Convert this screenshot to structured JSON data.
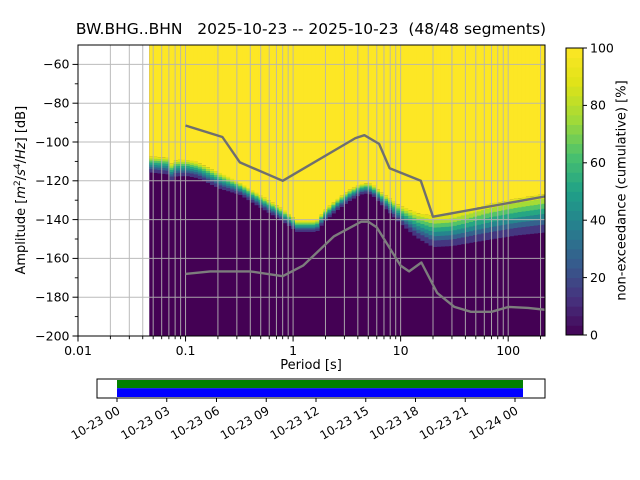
{
  "title": "BW.BHG..BHN   2025-10-23 -- 2025-10-23  (48/48 segments)",
  "station_id": "BW.BHG..BHN",
  "date_range": "2025-10-23 -- 2025-10-23",
  "segments": "48/48 segments",
  "axes": {
    "xlabel": "Period [s]",
    "ylabel_parts": {
      "pre": "Amplitude [",
      "m": "m",
      "m_exp": "2",
      "slash1": "/",
      "s": "s",
      "s_exp": "4",
      "slash2": "/",
      "hz": "Hz",
      "post": "] [dB]"
    }
  },
  "colorbar": {
    "label": "non-exceedance (cumulative) [%]",
    "tick_values": [
      0,
      20,
      40,
      60,
      80,
      100
    ],
    "tick_labels": [
      "0",
      "20",
      "40",
      "60",
      "80",
      "100"
    ],
    "steps": 30
  },
  "timeline": {
    "labels": [
      "10-23 00",
      "10-23 03",
      "10-23 06",
      "10-23 09",
      "10-23 12",
      "10-23 15",
      "10-23 18",
      "10-23 21",
      "10-24 00"
    ],
    "coverage_color_top": "#008000",
    "coverage_color_bottom": "#0000ff"
  },
  "chart_data": {
    "type": "heatmap",
    "title": "BW.BHG..BHN   2025-10-23 -- 2025-10-23  (48/48 segments)",
    "xlabel": "Period [s]",
    "ylabel": "Amplitude [m^2/s^4/Hz] [dB]",
    "xscale": "log",
    "xlim": [
      0.01,
      220
    ],
    "ylim": [
      -200,
      -50
    ],
    "xtick_values": [
      0.01,
      0.1,
      1,
      10,
      100
    ],
    "xtick_labels": [
      "0.01",
      "0.1",
      "1",
      "10",
      "100"
    ],
    "ytick_values": [
      -60,
      -80,
      -100,
      -120,
      -140,
      -160,
      -180,
      -200
    ],
    "ytick_labels": [
      "−60",
      "−80",
      "−100",
      "−120",
      "−140",
      "−160",
      "−180",
      "−200"
    ],
    "ytick_minor_values": [
      -70,
      -90,
      -110,
      -130,
      -150,
      -170,
      -190
    ],
    "grid": true,
    "grid_color": "#b4b4b4",
    "colormap": "viridis",
    "colormap_stops": [
      "#440154",
      "#46327e",
      "#365c8d",
      "#277f8e",
      "#1fa187",
      "#4ac16d",
      "#a0da39",
      "#dfe318",
      "#fde725"
    ],
    "colorbar_label": "non-exceedance (cumulative) [%]",
    "colorbar_range": [
      0,
      100
    ],
    "distribution": {
      "note": "cumulative PPSD: yellow above upper boundary (100%), purple below lower boundary (0%)",
      "period_start_s": 0.046,
      "period_bin_octaves": 0.125,
      "upper_boundary_db": [
        [
          0.046,
          -107.5
        ],
        [
          0.068,
          -108.0
        ],
        [
          0.071,
          -111.2
        ],
        [
          0.078,
          -111.2
        ],
        [
          0.081,
          -109.2
        ],
        [
          0.105,
          -109.3
        ],
        [
          0.13,
          -110.5
        ],
        [
          0.155,
          -112.5
        ],
        [
          0.21,
          -116.0
        ],
        [
          0.32,
          -121.0
        ],
        [
          0.49,
          -127.3
        ],
        [
          0.75,
          -133.5
        ],
        [
          0.99,
          -138.6
        ],
        [
          1.08,
          -140.7
        ],
        [
          1.65,
          -140.7
        ],
        [
          1.95,
          -135.2
        ],
        [
          2.5,
          -130.0
        ],
        [
          3.3,
          -124.8
        ],
        [
          4.2,
          -121.8
        ],
        [
          5.0,
          -121.0
        ],
        [
          5.6,
          -122.5
        ],
        [
          7.0,
          -127.0
        ],
        [
          10.0,
          -133.0
        ],
        [
          14.0,
          -136.5
        ],
        [
          20.0,
          -138.2
        ],
        [
          30.0,
          -137.5
        ],
        [
          45.0,
          -134.8
        ],
        [
          70.0,
          -131.8
        ],
        [
          120.0,
          -129.2
        ],
        [
          220.0,
          -126.8
        ]
      ],
      "lower_boundary_db": [
        [
          0.046,
          -115.5
        ],
        [
          0.068,
          -116.5
        ],
        [
          0.071,
          -119.5
        ],
        [
          0.078,
          -119.5
        ],
        [
          0.081,
          -117.5
        ],
        [
          0.105,
          -117.5
        ],
        [
          0.13,
          -118.5
        ],
        [
          0.155,
          -120.5
        ],
        [
          0.21,
          -124.0
        ],
        [
          0.32,
          -127.0
        ],
        [
          0.49,
          -133.5
        ],
        [
          0.75,
          -139.8
        ],
        [
          0.99,
          -144.5
        ],
        [
          1.08,
          -146.2
        ],
        [
          1.65,
          -146.2
        ],
        [
          1.95,
          -141.0
        ],
        [
          2.5,
          -135.5
        ],
        [
          3.3,
          -130.5
        ],
        [
          4.2,
          -127.0
        ],
        [
          5.0,
          -126.3
        ],
        [
          5.6,
          -128.0
        ],
        [
          7.0,
          -133.5
        ],
        [
          10.0,
          -142.0
        ],
        [
          14.0,
          -149.0
        ],
        [
          20.0,
          -154.0
        ],
        [
          30.0,
          -153.5
        ],
        [
          45.0,
          -151.8
        ],
        [
          70.0,
          -150.0
        ],
        [
          120.0,
          -148.0
        ],
        [
          220.0,
          -146.5
        ]
      ]
    },
    "noise_models": {
      "color_high": "#6f6f6f",
      "color_low": "#7d7d7d",
      "nhnm": [
        [
          0.1,
          -91.5
        ],
        [
          0.22,
          -97.4
        ],
        [
          0.32,
          -110.5
        ],
        [
          0.8,
          -120.0
        ],
        [
          3.8,
          -98.0
        ],
        [
          4.6,
          -96.5
        ],
        [
          6.3,
          -101.0
        ],
        [
          7.9,
          -113.5
        ],
        [
          15.4,
          -120.0
        ],
        [
          20.0,
          -138.5
        ],
        [
          354.8,
          -126.0
        ]
      ],
      "nlnm": [
        [
          0.1,
          -168.0
        ],
        [
          0.17,
          -166.7
        ],
        [
          0.4,
          -166.7
        ],
        [
          0.8,
          -169.2
        ],
        [
          1.24,
          -163.7
        ],
        [
          2.4,
          -148.6
        ],
        [
          4.3,
          -141.1
        ],
        [
          5.0,
          -141.1
        ],
        [
          6.0,
          -144.0
        ],
        [
          10.0,
          -163.7
        ],
        [
          12.0,
          -166.7
        ],
        [
          15.6,
          -162.1
        ],
        [
          21.9,
          -177.8
        ],
        [
          31.6,
          -185.0
        ],
        [
          45.0,
          -187.5
        ],
        [
          70.0,
          -187.5
        ],
        [
          101.0,
          -185.0
        ],
        [
          154.0,
          -185.5
        ],
        [
          328.0,
          -187.5
        ]
      ]
    }
  }
}
